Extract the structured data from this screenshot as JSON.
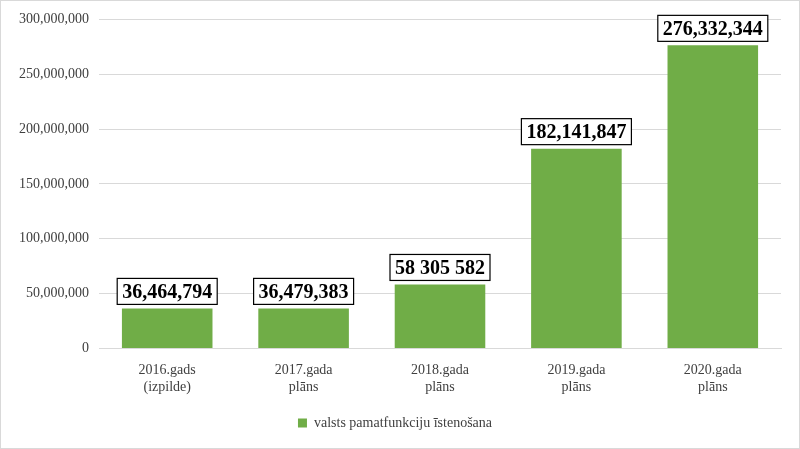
{
  "chart_data": {
    "type": "bar",
    "categories": [
      "2016.gads (izpilde)",
      "2017.gada plāns",
      "2018.gada plāns",
      "2019.gada plāns",
      "2020.gada plāns"
    ],
    "series": [
      {
        "name": "valsts pamatfunkciju īstenošana",
        "color": "#70ad47",
        "values": [
          36464794,
          36479383,
          58305582,
          182141847,
          276332344
        ],
        "value_labels": [
          "36,464,794",
          "36,479,383",
          "58 305 582",
          "182,141,847",
          "276,332,344"
        ]
      }
    ],
    "ylim": [
      0,
      300000000
    ],
    "yticks": [
      0,
      {
        "value": 50000000,
        "label": "50,000,000"
      },
      {
        "value": 100000000,
        "label": "100,000,000"
      },
      {
        "value": 150000000,
        "label": "150,000,000"
      },
      {
        "value": 200000000,
        "label": "200,000,000"
      },
      {
        "value": 250000000,
        "label": "250,000,000"
      },
      {
        "value": 300000000,
        "label": "300,000,000"
      }
    ],
    "grid": true,
    "legend": "bottom",
    "data_labels": true
  }
}
